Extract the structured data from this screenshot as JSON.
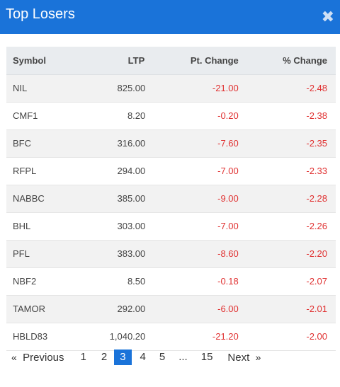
{
  "modal": {
    "title": "Top Losers",
    "close_symbol": "✖"
  },
  "table": {
    "headers": {
      "symbol": "Symbol",
      "ltp": "LTP",
      "pt_change": "Pt. Change",
      "pct_change": "% Change"
    },
    "rows": [
      {
        "symbol": "NIL",
        "ltp": "825.00",
        "pt_change": "-21.00",
        "pct_change": "-2.48"
      },
      {
        "symbol": "CMF1",
        "ltp": "8.20",
        "pt_change": "-0.20",
        "pct_change": "-2.38"
      },
      {
        "symbol": "BFC",
        "ltp": "316.00",
        "pt_change": "-7.60",
        "pct_change": "-2.35"
      },
      {
        "symbol": "RFPL",
        "ltp": "294.00",
        "pt_change": "-7.00",
        "pct_change": "-2.33"
      },
      {
        "symbol": "NABBC",
        "ltp": "385.00",
        "pt_change": "-9.00",
        "pct_change": "-2.28"
      },
      {
        "symbol": "BHL",
        "ltp": "303.00",
        "pt_change": "-7.00",
        "pct_change": "-2.26"
      },
      {
        "symbol": "PFL",
        "ltp": "383.00",
        "pt_change": "-8.60",
        "pct_change": "-2.20"
      },
      {
        "symbol": "NBF2",
        "ltp": "8.50",
        "pt_change": "-0.18",
        "pct_change": "-2.07"
      },
      {
        "symbol": "TAMOR",
        "ltp": "292.00",
        "pt_change": "-6.00",
        "pct_change": "-2.01"
      },
      {
        "symbol": "HBLD83",
        "ltp": "1,040.20",
        "pt_change": "-21.20",
        "pct_change": "-2.00"
      }
    ]
  },
  "pagination": {
    "prev_arrow": "«",
    "prev_label": "Previous",
    "pages": [
      "1",
      "2",
      "3",
      "4",
      "5"
    ],
    "active_page": "3",
    "ellipsis": "...",
    "last_page": "15",
    "next_label": "Next",
    "next_arrow": "»"
  },
  "colors": {
    "header_bg": "#1a73d9",
    "negative": "#e03131",
    "active_page_bg": "#1a73d9"
  }
}
